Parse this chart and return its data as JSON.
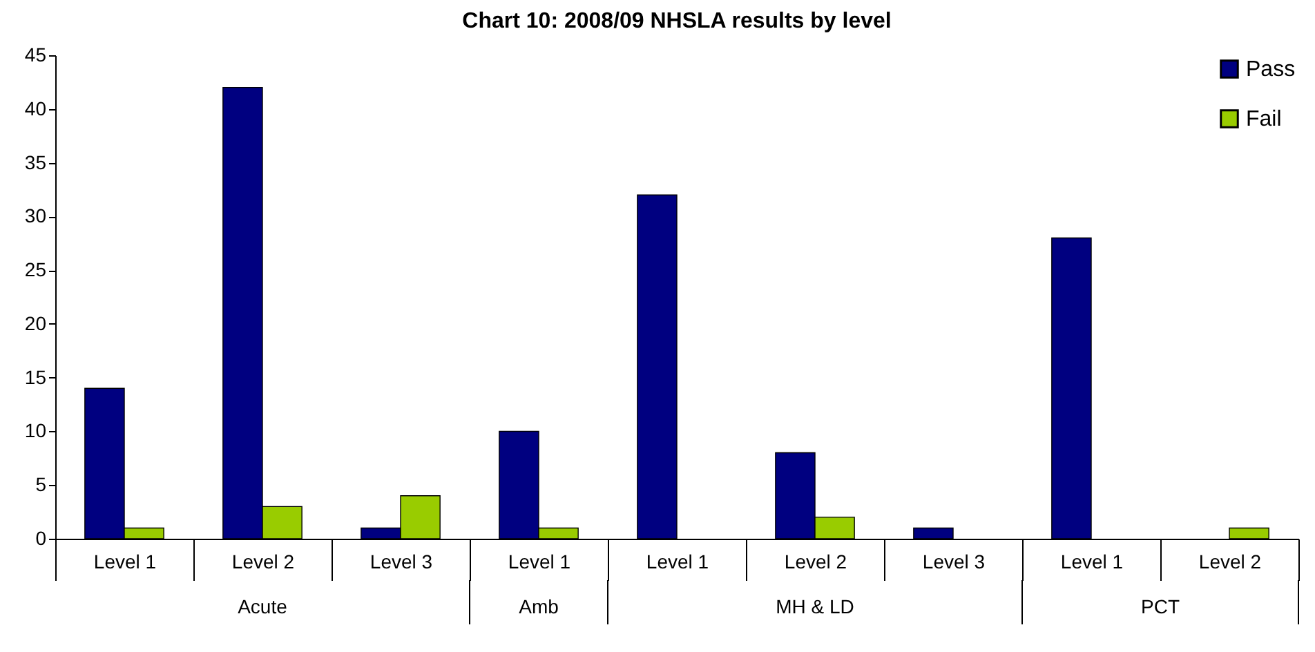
{
  "chart_data": {
    "type": "bar",
    "title": "Chart 10: 2008/09 NHSLA results by level",
    "categories": [
      "Level 1",
      "Level 2",
      "Level 3",
      "Level 1",
      "Level 1",
      "Level 2",
      "Level 3",
      "Level 1",
      "Level 2"
    ],
    "series": [
      {
        "name": "Pass",
        "color": "#000080",
        "values": [
          14,
          42,
          1,
          10,
          32,
          8,
          1,
          28,
          0
        ]
      },
      {
        "name": "Fail",
        "color": "#99cc00",
        "values": [
          1,
          3,
          4,
          1,
          0,
          2,
          0,
          0,
          1
        ]
      }
    ],
    "annotations": [
      "Acute",
      "Amb",
      "MH & LD",
      "PCT"
    ],
    "ylim": [
      0,
      45
    ],
    "yticks": [
      0,
      5,
      10,
      15,
      20,
      25,
      30,
      35,
      40,
      45
    ],
    "grid": false,
    "legend": "top right"
  }
}
